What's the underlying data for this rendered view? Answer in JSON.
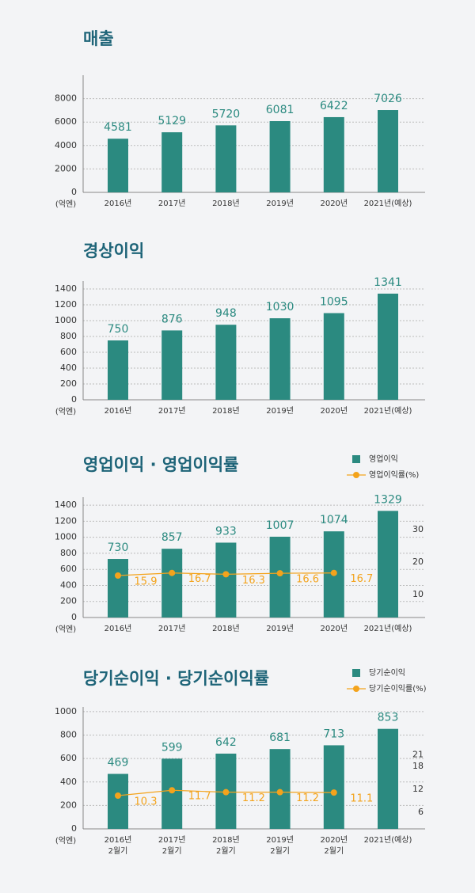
{
  "chart_data": [
    {
      "type": "bar",
      "title": "매출",
      "y_unit": "(억엔)",
      "categories": [
        "2016년",
        "2017년",
        "2018년",
        "2019년",
        "2020년",
        "2021년(예상)"
      ],
      "values": [
        4581,
        5129,
        5720,
        6081,
        6422,
        7026
      ],
      "color": "#2b8a80",
      "ylim": [
        0,
        10000
      ],
      "yticks": [
        0,
        2000,
        4000,
        6000,
        8000
      ],
      "grid": true
    },
    {
      "type": "bar",
      "title": "경상이익",
      "y_unit": "(억엔)",
      "categories": [
        "2016년",
        "2017년",
        "2018년",
        "2019년",
        "2020년",
        "2021년(예상)"
      ],
      "values": [
        750,
        876,
        948,
        1030,
        1095,
        1341
      ],
      "color": "#2b8a80",
      "ylim": [
        0,
        1500
      ],
      "yticks": [
        0,
        200,
        400,
        600,
        800,
        1000,
        1200,
        1400
      ],
      "grid": true
    },
    {
      "type": "combo",
      "title": "영업이익 · 영업이익률",
      "y_unit": "(억엔)",
      "categories": [
        "2016년",
        "2017년",
        "2018년",
        "2019년",
        "2020년",
        "2021년(예상)"
      ],
      "series": [
        {
          "name": "영업이익",
          "type": "bar",
          "color": "#2b8a80",
          "values": [
            730,
            857,
            933,
            1007,
            1074,
            1329
          ]
        },
        {
          "name": "영업이익률(%)",
          "type": "line",
          "axis": "y2",
          "color": "#f3a31c",
          "values": [
            15.9,
            16.7,
            16.3,
            16.6,
            16.7,
            null
          ]
        }
      ],
      "ylim": [
        0,
        1500
      ],
      "yticks": [
        0,
        200,
        400,
        600,
        800,
        1000,
        1200,
        1400
      ],
      "y2lim": [
        3,
        40
      ],
      "y2ticks": [
        10,
        20,
        30
      ],
      "grid": true,
      "legend": "top-right"
    },
    {
      "type": "combo",
      "title": "당기순이익 · 당기순이익률",
      "y_unit": "(억엔)",
      "categories": [
        "2016년\n2월기",
        "2017년\n2월기",
        "2018년\n2월기",
        "2019년\n2월기",
        "2020년\n2월기",
        "2021년(예상)"
      ],
      "series": [
        {
          "name": "당기순이익",
          "type": "bar",
          "color": "#2b8a80",
          "values": [
            469,
            599,
            642,
            681,
            713,
            853
          ]
        },
        {
          "name": "당기순이익률(%)",
          "type": "line",
          "axis": "y2",
          "color": "#f3a31c",
          "values": [
            10.3,
            11.7,
            11.2,
            11.2,
            11.1,
            null
          ]
        }
      ],
      "ylim": [
        0,
        1040
      ],
      "yticks": [
        0,
        200,
        400,
        600,
        800,
        1000
      ],
      "y2lim": [
        1.6,
        33.5
      ],
      "y2ticks": [
        6,
        12,
        18,
        21
      ],
      "grid": true,
      "legend": "top-right"
    }
  ]
}
